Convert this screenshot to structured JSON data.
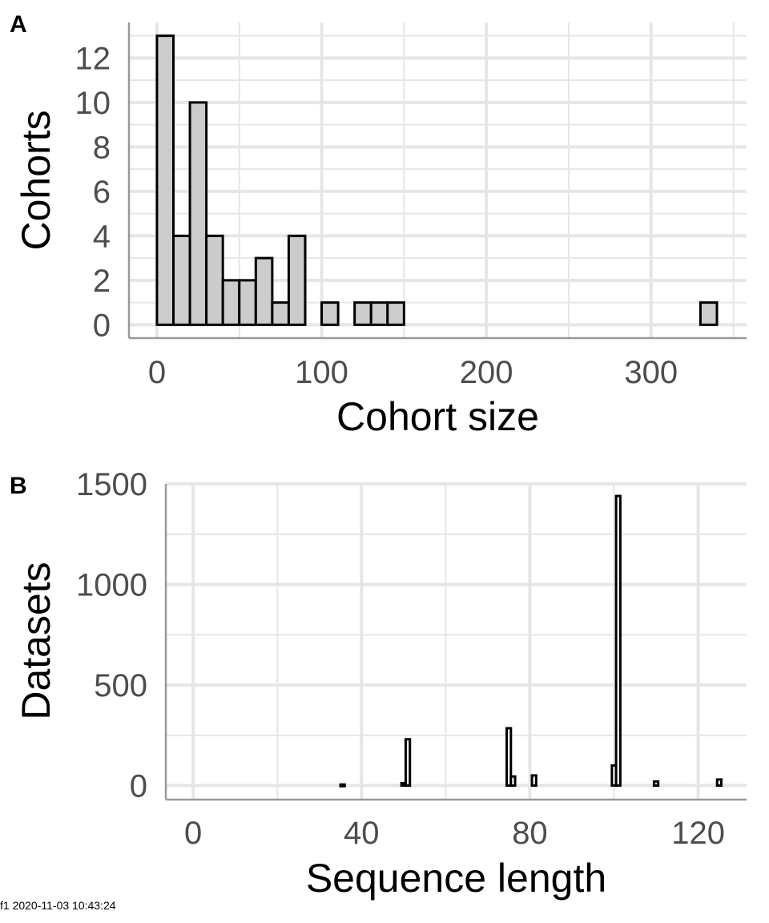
{
  "chart_data": [
    {
      "panel": "A",
      "type": "bar",
      "subtype": "histogram",
      "xlabel": "Cohort size",
      "ylabel": "Cohorts",
      "xlim": [
        -17,
        358
      ],
      "ylim": [
        -0.6,
        13.6
      ],
      "xticks": [
        0,
        100,
        200,
        300
      ],
      "yticks": [
        0,
        2,
        4,
        6,
        8,
        10,
        12
      ],
      "bin_width": 10,
      "bins": [
        {
          "x0": 0,
          "x1": 10,
          "count": 13
        },
        {
          "x0": 10,
          "x1": 20,
          "count": 4
        },
        {
          "x0": 20,
          "x1": 30,
          "count": 10
        },
        {
          "x0": 30,
          "x1": 40,
          "count": 4
        },
        {
          "x0": 40,
          "x1": 50,
          "count": 2
        },
        {
          "x0": 50,
          "x1": 60,
          "count": 2
        },
        {
          "x0": 60,
          "x1": 70,
          "count": 3
        },
        {
          "x0": 70,
          "x1": 80,
          "count": 1
        },
        {
          "x0": 80,
          "x1": 90,
          "count": 4
        },
        {
          "x0": 100,
          "x1": 110,
          "count": 1
        },
        {
          "x0": 120,
          "x1": 130,
          "count": 1
        },
        {
          "x0": 130,
          "x1": 140,
          "count": 1
        },
        {
          "x0": 140,
          "x1": 150,
          "count": 1
        },
        {
          "x0": 330,
          "x1": 340,
          "count": 1
        }
      ],
      "fill": "#cccccc",
      "stroke": "#000000",
      "grid": true
    },
    {
      "panel": "B",
      "type": "bar",
      "subtype": "histogram",
      "xlabel": "Sequence length",
      "ylabel": "Datasets",
      "xlim": [
        -6.5,
        131.5
      ],
      "ylim": [
        -70,
        1500
      ],
      "xticks": [
        0,
        40,
        80,
        120
      ],
      "yticks": [
        0,
        500,
        1000,
        1500
      ],
      "bin_width": 1,
      "bins": [
        {
          "x0": 35,
          "x1": 36,
          "count": 5
        },
        {
          "x0": 49.5,
          "x1": 50.5,
          "count": 12
        },
        {
          "x0": 50.5,
          "x1": 51.5,
          "count": 230
        },
        {
          "x0": 74.5,
          "x1": 75.5,
          "count": 285
        },
        {
          "x0": 75.5,
          "x1": 76.5,
          "count": 45
        },
        {
          "x0": 80.5,
          "x1": 81.5,
          "count": 50
        },
        {
          "x0": 99.5,
          "x1": 100.5,
          "count": 100
        },
        {
          "x0": 100.5,
          "x1": 101.5,
          "count": 1440
        },
        {
          "x0": 109.5,
          "x1": 110.5,
          "count": 20
        },
        {
          "x0": 124.5,
          "x1": 125.5,
          "count": 30
        }
      ],
      "fill": "#ffffff",
      "stroke": "#000000",
      "grid": true
    }
  ],
  "footer": "f1 2020-11-03 10:43:24",
  "colors": {
    "grid": "#e6e6e6",
    "axis": "#999999",
    "tick_text": "#4d4d4d"
  }
}
